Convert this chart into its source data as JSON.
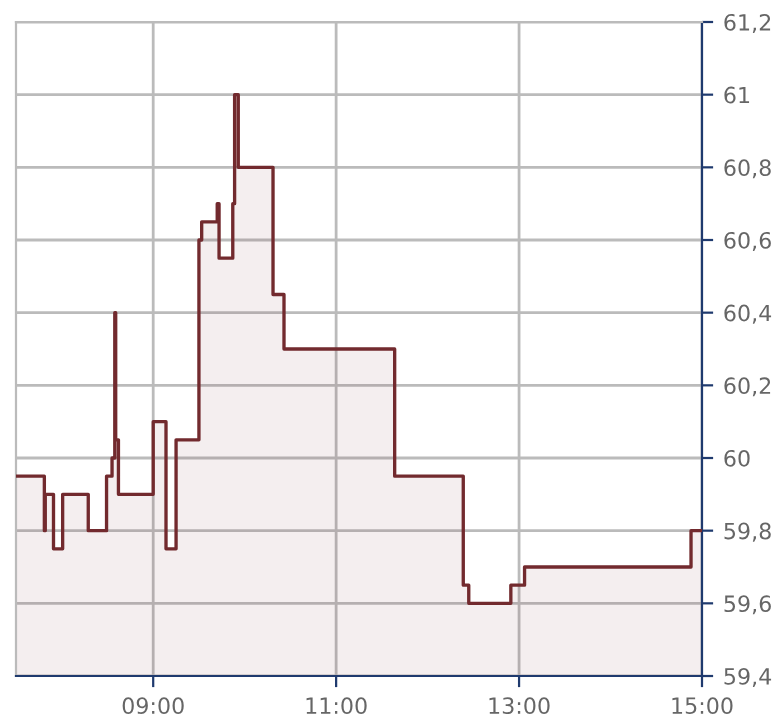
{
  "chart_data": {
    "type": "area",
    "x": [
      7.5,
      7.81,
      7.81,
      7.82,
      7.82,
      7.91,
      7.91,
      8.01,
      8.01,
      8.29,
      8.29,
      8.49,
      8.49,
      8.55,
      8.55,
      8.58,
      8.58,
      8.59,
      8.59,
      8.62,
      8.62,
      9.0,
      9.0,
      9.14,
      9.14,
      9.25,
      9.25,
      9.5,
      9.5,
      9.53,
      9.53,
      9.7,
      9.7,
      9.72,
      9.72,
      9.87,
      9.87,
      9.89,
      9.89,
      9.93,
      9.93,
      10.31,
      10.31,
      10.43,
      10.43,
      11.64,
      11.64,
      12.39,
      12.39,
      12.45,
      12.45,
      12.91,
      12.91,
      13.06,
      13.06,
      14.88,
      14.88,
      15.0
    ],
    "series": [
      {
        "color": "#722a2e",
        "values": [
          59.95,
          59.95,
          59.8,
          59.8,
          59.9,
          59.9,
          59.75,
          59.75,
          59.9,
          59.9,
          59.8,
          59.8,
          59.95,
          59.95,
          60.0,
          60.0,
          60.4,
          60.4,
          60.05,
          60.05,
          59.9,
          59.9,
          60.1,
          60.1,
          59.75,
          59.75,
          60.05,
          60.05,
          60.6,
          60.6,
          60.65,
          60.65,
          60.7,
          60.7,
          60.55,
          60.55,
          60.7,
          60.7,
          61.0,
          61.0,
          60.8,
          60.8,
          60.45,
          60.45,
          60.3,
          60.3,
          59.95,
          59.95,
          59.65,
          59.65,
          59.6,
          59.6,
          59.65,
          59.65,
          59.7,
          59.7,
          59.8,
          59.8
        ]
      }
    ],
    "xlim": [
      7.5,
      15
    ],
    "xticks": [
      {
        "value": 9,
        "label": "09:00"
      },
      {
        "value": 11,
        "label": "11:00"
      },
      {
        "value": 13,
        "label": "13:00"
      },
      {
        "value": 15,
        "label": "15:00"
      }
    ],
    "ylim": [
      59.4,
      61.2
    ],
    "yticks": [
      {
        "value": 59.4,
        "label": "59,4"
      },
      {
        "value": 59.6,
        "label": "59,6"
      },
      {
        "value": 59.8,
        "label": "59,8"
      },
      60,
      {
        "value": 60.2,
        "label": "60,2"
      },
      {
        "value": 60.4,
        "label": "60,4"
      },
      {
        "value": 60.6,
        "label": "60,6"
      },
      {
        "value": 60.8,
        "label": "60,8"
      },
      61,
      {
        "value": 61.2,
        "label": "61,2"
      }
    ],
    "grid": true,
    "line_style": "solid"
  }
}
